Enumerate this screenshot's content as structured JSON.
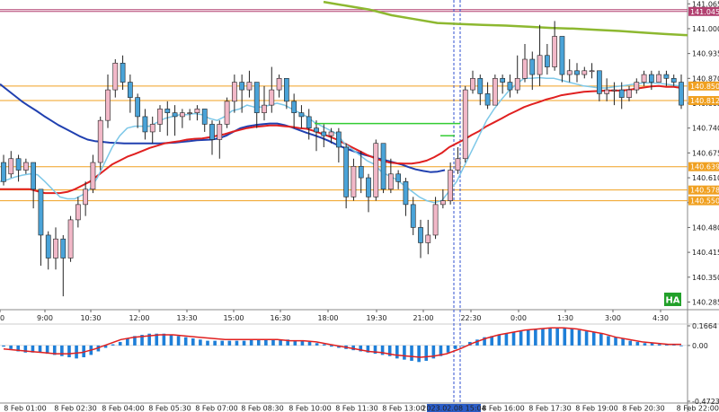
{
  "chart_data": [
    {
      "type": "candlestick",
      "panel": "main",
      "badge": "HA",
      "ylim": [
        140.265,
        141.075
      ],
      "y_ticks": [
        140.285,
        140.35,
        140.415,
        140.48,
        140.545,
        140.61,
        140.675,
        140.74,
        140.805,
        140.87,
        140.935,
        141.0,
        141.065
      ],
      "x_ticks": [
        "0",
        "9:00",
        "10:30",
        "12:00",
        "13:30",
        "15:00",
        "16:30",
        "18:00",
        "19:30",
        "21:00",
        "22:30",
        "0:00",
        "1:30",
        "3:00",
        "4:30"
      ],
      "highlighted_x_label": "22:30",
      "horizontal_levels": [
        {
          "value": 141.045,
          "color": "#b24070"
        },
        {
          "value": 140.85,
          "color": "#f0a020"
        },
        {
          "value": 140.812,
          "color": "#f0a020"
        },
        {
          "value": 140.639,
          "color": "#f0a020"
        },
        {
          "value": 140.578,
          "color": "#f0a020"
        },
        {
          "value": 140.55,
          "color": "#f0a020"
        }
      ],
      "marker_level": {
        "value": 140.752,
        "color": "#33cc33"
      },
      "colors": {
        "bull": "#f2b8c8",
        "bear": "#4aa3d8",
        "wick": "#222222",
        "ma_slow": "#8db830",
        "ma_blue": "#2040b0",
        "ma_red": "#e02020",
        "ma_cyan": "#7ec8e8",
        "level": "#f0a020",
        "marker": "#33cc33"
      },
      "candles": [
        [
          140.65,
          140.6,
          140.67,
          140.59
        ],
        [
          140.62,
          140.66,
          140.68,
          140.61
        ],
        [
          140.66,
          140.63,
          140.67,
          140.6
        ],
        [
          140.63,
          140.65,
          140.66,
          140.62
        ],
        [
          140.65,
          140.58,
          140.65,
          140.53
        ],
        [
          140.58,
          140.46,
          140.58,
          140.38
        ],
        [
          140.46,
          140.4,
          140.47,
          140.37
        ],
        [
          140.4,
          140.45,
          140.48,
          140.37
        ],
        [
          140.45,
          140.4,
          140.46,
          140.3
        ],
        [
          140.4,
          140.5,
          140.51,
          140.39
        ],
        [
          140.5,
          140.54,
          140.56,
          140.48
        ],
        [
          140.54,
          140.58,
          140.6,
          140.51
        ],
        [
          140.58,
          140.65,
          140.67,
          140.57
        ],
        [
          140.65,
          140.76,
          140.77,
          140.63
        ],
        [
          140.76,
          140.84,
          140.88,
          140.74
        ],
        [
          140.84,
          140.91,
          140.92,
          140.82
        ],
        [
          140.91,
          140.86,
          140.93,
          140.84
        ],
        [
          140.86,
          140.82,
          140.88,
          140.78
        ],
        [
          140.82,
          140.77,
          140.83,
          140.74
        ],
        [
          140.77,
          140.73,
          140.79,
          140.71
        ],
        [
          140.73,
          140.75,
          140.77,
          140.7
        ],
        [
          140.75,
          140.79,
          140.8,
          140.73
        ],
        [
          140.79,
          140.78,
          140.81,
          140.72
        ],
        [
          140.78,
          140.77,
          140.8,
          140.72
        ],
        [
          140.77,
          140.78,
          140.79,
          140.74
        ],
        [
          140.78,
          140.78,
          140.79,
          140.76
        ],
        [
          140.78,
          140.79,
          140.8,
          140.76
        ],
        [
          140.79,
          140.75,
          140.79,
          140.73
        ],
        [
          140.75,
          140.71,
          140.76,
          140.67
        ],
        [
          140.71,
          140.75,
          140.76,
          140.66
        ],
        [
          140.75,
          140.81,
          140.82,
          140.74
        ],
        [
          140.81,
          140.86,
          140.88,
          140.78
        ],
        [
          140.86,
          140.84,
          140.88,
          140.78
        ],
        [
          140.84,
          140.86,
          140.89,
          140.82
        ],
        [
          140.86,
          140.78,
          140.86,
          140.74
        ],
        [
          140.78,
          140.8,
          140.85,
          140.76
        ],
        [
          140.8,
          140.84,
          140.9,
          140.78
        ],
        [
          140.84,
          140.87,
          140.88,
          140.82
        ],
        [
          140.87,
          140.81,
          140.87,
          140.79
        ],
        [
          140.81,
          140.78,
          140.83,
          140.74
        ],
        [
          140.78,
          140.77,
          140.8,
          140.74
        ],
        [
          140.77,
          140.74,
          140.79,
          140.71
        ],
        [
          140.74,
          140.73,
          140.76,
          140.68
        ],
        [
          140.73,
          140.72,
          140.75,
          140.69
        ],
        [
          140.72,
          140.73,
          140.74,
          140.7
        ],
        [
          140.73,
          140.69,
          140.74,
          140.65
        ],
        [
          140.69,
          140.56,
          140.7,
          140.53
        ],
        [
          140.56,
          140.64,
          140.66,
          140.55
        ],
        [
          140.64,
          140.61,
          140.68,
          140.57
        ],
        [
          140.61,
          140.56,
          140.62,
          140.52
        ],
        [
          140.56,
          140.7,
          140.71,
          140.55
        ],
        [
          140.7,
          140.58,
          140.7,
          140.57
        ],
        [
          140.58,
          140.62,
          140.66,
          140.57
        ],
        [
          140.62,
          140.6,
          140.63,
          140.58
        ],
        [
          140.6,
          140.54,
          140.61,
          140.51
        ],
        [
          140.54,
          140.48,
          140.56,
          140.46
        ],
        [
          140.48,
          140.44,
          140.5,
          140.4
        ],
        [
          140.44,
          140.46,
          140.5,
          140.41
        ],
        [
          140.46,
          140.54,
          140.56,
          140.45
        ],
        [
          140.54,
          140.55,
          140.58,
          140.53
        ],
        [
          140.55,
          140.63,
          140.65,
          140.54
        ],
        [
          140.63,
          140.66,
          140.69,
          140.62
        ],
        [
          140.66,
          140.84,
          140.85,
          140.65
        ],
        [
          140.84,
          140.87,
          140.89,
          140.83
        ],
        [
          140.87,
          140.83,
          140.88,
          140.8
        ],
        [
          140.83,
          140.8,
          140.86,
          140.79
        ],
        [
          140.8,
          140.87,
          140.88,
          140.8
        ],
        [
          140.87,
          140.86,
          140.88,
          140.83
        ],
        [
          140.86,
          140.84,
          140.88,
          140.82
        ],
        [
          140.84,
          140.87,
          140.93,
          140.83
        ],
        [
          140.87,
          140.92,
          140.96,
          140.86
        ],
        [
          140.92,
          140.88,
          140.94,
          140.84
        ],
        [
          140.88,
          140.93,
          141.01,
          140.85
        ],
        [
          140.93,
          140.9,
          140.96,
          140.88
        ],
        [
          140.9,
          140.98,
          141.02,
          140.89
        ],
        [
          140.98,
          140.88,
          140.98,
          140.86
        ],
        [
          140.88,
          140.89,
          140.92,
          140.86
        ],
        [
          140.89,
          140.88,
          140.91,
          140.86
        ],
        [
          140.88,
          140.89,
          140.9,
          140.87
        ],
        [
          140.89,
          140.89,
          140.91,
          140.87
        ],
        [
          140.89,
          140.83,
          140.89,
          140.81
        ],
        [
          140.83,
          140.84,
          140.87,
          140.81
        ],
        [
          140.84,
          140.84,
          140.86,
          140.8
        ],
        [
          140.84,
          140.82,
          140.86,
          140.79
        ],
        [
          140.82,
          140.84,
          140.85,
          140.81
        ],
        [
          140.84,
          140.86,
          140.87,
          140.83
        ],
        [
          140.86,
          140.88,
          140.89,
          140.85
        ],
        [
          140.88,
          140.86,
          140.89,
          140.84
        ],
        [
          140.86,
          140.88,
          140.89,
          140.86
        ],
        [
          140.88,
          140.87,
          140.89,
          140.85
        ],
        [
          140.87,
          140.86,
          140.88,
          140.85
        ],
        [
          140.86,
          140.8,
          140.88,
          140.79
        ]
      ],
      "series": [
        {
          "values": [
            140.855,
            140.84,
            140.825,
            140.81,
            140.797,
            140.785,
            140.772,
            140.76,
            140.748,
            140.738,
            140.728,
            140.718,
            140.71,
            140.706,
            140.704,
            140.702,
            140.701,
            140.7,
            140.7,
            140.7,
            140.7,
            140.7,
            140.7,
            140.701,
            140.702,
            140.704,
            140.706,
            140.708,
            140.709,
            140.71,
            140.713,
            140.72,
            140.73,
            140.74,
            140.745,
            140.748,
            140.75,
            140.752,
            140.752,
            140.748,
            140.742,
            140.735,
            140.728,
            140.722,
            140.715,
            140.707,
            140.698,
            140.69,
            140.683,
            140.676,
            140.67,
            140.665,
            140.66,
            140.655,
            140.65,
            140.645,
            140.638,
            140.632,
            140.628,
            140.625,
            140.626,
            140.63
          ]
        },
        {
          "values": [
            140.58,
            140.58,
            140.58,
            140.58,
            140.58,
            140.575,
            140.57,
            140.57,
            140.57,
            140.573,
            140.58,
            140.59,
            140.6,
            140.615,
            140.63,
            140.645,
            140.655,
            140.665,
            140.672,
            140.68,
            140.688,
            140.694,
            140.7,
            140.703,
            140.706,
            140.71,
            140.712,
            140.713,
            140.716,
            140.72,
            140.724,
            140.73,
            140.735,
            140.74,
            140.743,
            140.745,
            140.747,
            140.747,
            140.745,
            140.743,
            140.74,
            140.738,
            140.732,
            140.725,
            140.718,
            140.71,
            140.7,
            140.69,
            140.68,
            140.67,
            140.662,
            140.655,
            140.65,
            140.648,
            140.647,
            140.647,
            140.65,
            140.655,
            140.664,
            140.675,
            140.69,
            140.7,
            140.71,
            140.722,
            140.732,
            140.745,
            140.755,
            140.765,
            140.776,
            140.785,
            140.795,
            140.802,
            140.808,
            140.815,
            140.82,
            140.826,
            140.829,
            140.832,
            140.835,
            140.836,
            140.837,
            140.838,
            140.838,
            140.838,
            140.84,
            140.843,
            140.846,
            140.849,
            140.85,
            140.848,
            140.848,
            140.845
          ]
        },
        {
          "values": [
            140.6,
            140.605,
            140.612,
            140.617,
            140.62,
            140.618,
            140.6,
            140.58,
            140.56,
            140.555,
            140.555,
            140.565,
            140.58,
            140.61,
            140.65,
            140.69,
            140.72,
            140.74,
            140.745,
            140.745,
            140.745,
            140.755,
            140.765,
            140.77,
            140.775,
            140.775,
            140.778,
            140.775,
            140.765,
            140.76,
            140.77,
            140.785,
            140.79,
            140.8,
            140.795,
            140.795,
            140.8,
            140.805,
            140.8,
            140.79,
            140.78,
            140.77,
            140.755,
            140.745,
            140.735,
            140.725,
            140.7,
            140.685,
            140.67,
            140.655,
            140.645,
            140.625,
            140.615,
            140.605,
            140.59,
            140.575,
            140.56,
            140.55,
            140.545,
            140.55,
            140.575,
            140.6,
            140.64,
            140.68,
            140.72,
            140.76,
            140.79,
            140.815,
            140.838,
            140.855,
            140.87,
            140.87,
            140.872,
            140.87,
            140.87,
            140.865,
            140.86,
            140.855,
            140.85,
            140.848,
            140.845,
            140.845,
            140.848,
            140.85,
            140.853,
            140.856,
            140.858,
            140.858,
            140.857,
            140.855,
            140.852,
            140.85
          ]
        },
        {
          "values": [
            141.07,
            141.06,
            141.05,
            141.035,
            141.025,
            141.015,
            141.012,
            141.01,
            141.008,
            141.005,
            141.002,
            141.0,
            140.997,
            140.994,
            140.99,
            140.986,
            140.983
          ]
        }
      ]
    },
    {
      "type": "bar",
      "panel": "oscillator",
      "ylim": [
        -0.4723,
        0.1664
      ],
      "y_ticks": [
        0.1664,
        0.0,
        -0.4723
      ],
      "y_tick_labels": [
        "0.1664",
        "0.00",
        "-0.4723"
      ],
      "x_ticks": [
        "8 Feb 01:00",
        "8 Feb 02:30",
        "8 Feb 04:00",
        "8 Feb 05:30",
        "8 Feb 07:00",
        "8 Feb 08:30",
        "8 Feb 10:00",
        "8 Feb 11:30",
        "8 Feb 13:00",
        "2023.02.08 15:04",
        "8 Feb 16:00",
        "8 Feb 17:30",
        "8 Feb 19:00",
        "8 Feb 20:30",
        "8 Feb 22:00"
      ],
      "highlighted_x_label": "2023.02.08 15:04",
      "values": [
        -0.01,
        -0.03,
        -0.05,
        -0.06,
        -0.06,
        -0.06,
        -0.07,
        -0.08,
        -0.09,
        -0.1,
        -0.11,
        -0.1,
        -0.08,
        -0.05,
        -0.02,
        0.01,
        0.03,
        0.06,
        0.08,
        0.09,
        0.1,
        0.1,
        0.1,
        0.09,
        0.08,
        0.07,
        0.06,
        0.05,
        0.04,
        0.04,
        0.04,
        0.04,
        0.04,
        0.04,
        0.05,
        0.05,
        0.05,
        0.05,
        0.05,
        0.05,
        0.04,
        0.04,
        0.03,
        0.02,
        0.01,
        -0.01,
        -0.02,
        -0.03,
        -0.04,
        -0.05,
        -0.06,
        -0.07,
        -0.08,
        -0.09,
        -0.11,
        -0.12,
        -0.13,
        -0.14,
        -0.13,
        -0.11,
        -0.09,
        -0.06,
        -0.03,
        0.0,
        0.03,
        0.05,
        0.07,
        0.08,
        0.09,
        0.1,
        0.11,
        0.12,
        0.13,
        0.14,
        0.14,
        0.15,
        0.15,
        0.15,
        0.14,
        0.13,
        0.12,
        0.11,
        0.1,
        0.08,
        0.07,
        0.06,
        0.04,
        0.03,
        0.02,
        0.02,
        0.01,
        0.01,
        0.01,
        0.0
      ],
      "signal": [
        -0.03,
        -0.04,
        -0.05,
        -0.06,
        -0.07,
        -0.07,
        -0.06,
        -0.03,
        0.01,
        0.05,
        0.07,
        0.08,
        0.09,
        0.09,
        0.08,
        0.07,
        0.06,
        0.05,
        0.05,
        0.05,
        0.05,
        0.05,
        0.04,
        0.04,
        0.03,
        0.01,
        -0.01,
        -0.03,
        -0.05,
        -0.06,
        -0.08,
        -0.09,
        -0.1,
        -0.09,
        -0.07,
        -0.03,
        0.02,
        0.06,
        0.09,
        0.11,
        0.13,
        0.14,
        0.15,
        0.15,
        0.14,
        0.12,
        0.1,
        0.07,
        0.05,
        0.03,
        0.02,
        0.01,
        0.01
      ],
      "colors": {
        "bar": "#1e7fd8",
        "signal": "#e02020"
      }
    }
  ]
}
